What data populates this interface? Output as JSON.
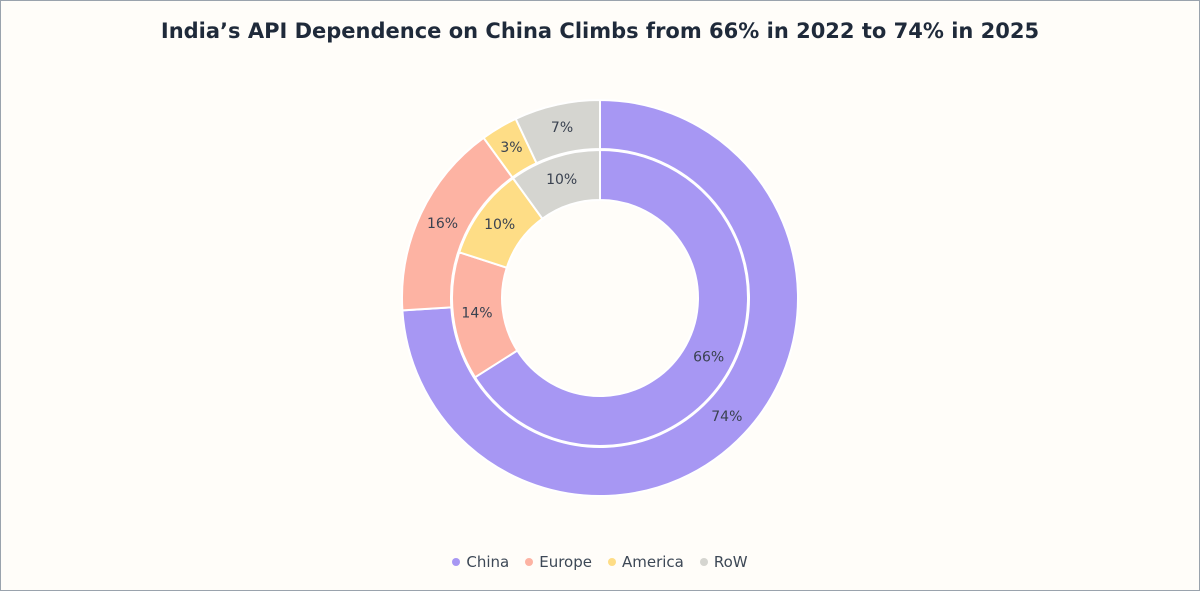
{
  "chart_data": {
    "type": "pie",
    "title": "India’s API Dependence on China Climbs from 66% in 2022 to 74% in 2025",
    "categories": [
      "China",
      "Europe",
      "America",
      "RoW"
    ],
    "colors": {
      "China": "#a797f3",
      "Europe": "#fdb3a3",
      "America": "#fedd86",
      "RoW": "#d5d5d0"
    },
    "series": [
      {
        "values": [
          66,
          14,
          10,
          10
        ],
        "labels": [
          "66%",
          "14%",
          "10%",
          "10%"
        ]
      },
      {
        "values": [
          74,
          16,
          3,
          7
        ],
        "labels": [
          "74%",
          "16%",
          "3%",
          "7%"
        ]
      }
    ],
    "legend_position": "bottom"
  }
}
